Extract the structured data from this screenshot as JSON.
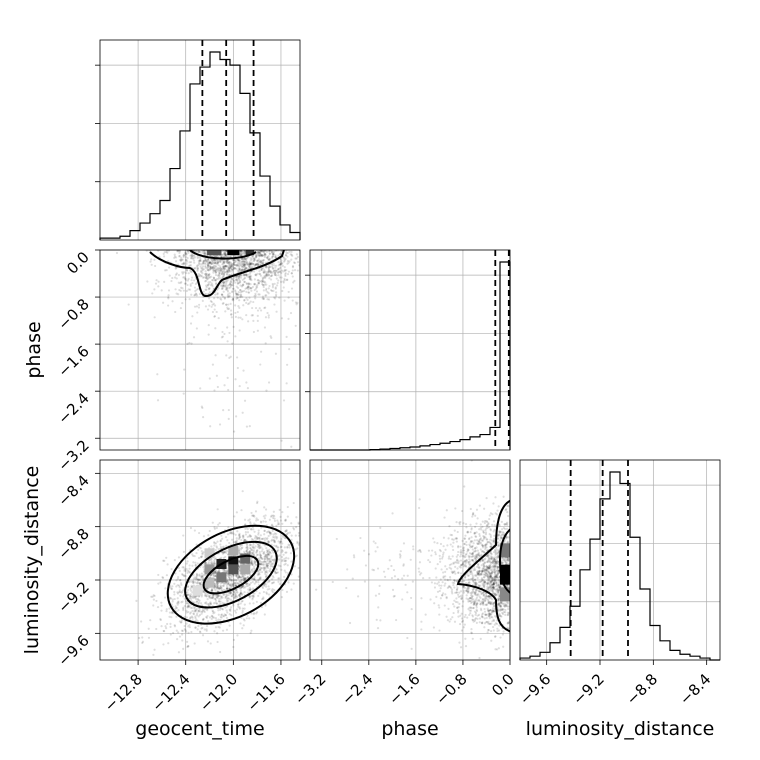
{
  "chart_data": {
    "type": "corner",
    "parameters": [
      "geocent_time",
      "phase",
      "luminosity_distance"
    ],
    "ranges": {
      "geocent_time": [
        -13.12,
        -11.44
      ],
      "phase": [
        -3.4,
        0.0
      ],
      "luminosity_distance": [
        -9.8,
        -8.3
      ]
    },
    "ticks": {
      "geocent_time": [
        -12.8,
        -12.4,
        -12.0,
        -11.6
      ],
      "phase": [
        -3.2,
        -2.4,
        -1.6,
        -0.8,
        0.0
      ],
      "luminosity_distance": [
        -9.6,
        -9.2,
        -8.8,
        -8.4
      ]
    },
    "tick_labels": {
      "geocent_time": [
        "−12.8",
        "−12.4",
        "−12.0",
        "−11.6"
      ],
      "phase": [
        "−3.2",
        "−2.4",
        "−1.6",
        "−0.8",
        "0.0"
      ],
      "luminosity_distance": [
        "−9.6",
        "−9.2",
        "−8.8",
        "−8.4"
      ]
    },
    "histograms": {
      "geocent_time": {
        "edges_start": -13.12,
        "bin_width": 0.084,
        "counts": [
          0.01,
          0.01,
          0.02,
          0.05,
          0.09,
          0.14,
          0.21,
          0.38,
          0.58,
          0.83,
          0.92,
          1.0,
          0.96,
          0.93,
          0.78,
          0.57,
          0.34,
          0.18,
          0.08,
          0.04,
          0.01
        ]
      },
      "phase": {
        "edges_start": -3.4,
        "bin_width": 0.17,
        "counts": [
          0.0,
          0.0,
          0.0,
          0.0,
          0.0,
          0.0,
          0.002,
          0.005,
          0.008,
          0.012,
          0.016,
          0.022,
          0.029,
          0.036,
          0.045,
          0.055,
          0.07,
          0.082,
          0.12,
          1.0
        ]
      },
      "luminosity_distance": {
        "edges_start": -9.8,
        "bin_width": 0.075,
        "counts": [
          0.01,
          0.02,
          0.04,
          0.09,
          0.17,
          0.28,
          0.47,
          0.63,
          0.84,
          0.98,
          0.92,
          0.64,
          0.37,
          0.18,
          0.1,
          0.05,
          0.03,
          0.02,
          0.01,
          0.0
        ]
      }
    },
    "quantiles": {
      "geocent_time": [
        -12.26,
        -12.06,
        -11.83
      ],
      "phase": [
        -0.25,
        -0.02,
        0.0
      ],
      "luminosity_distance": [
        -9.42,
        -9.18,
        -8.99
      ]
    },
    "samples_2d": {
      "phase_vs_geocent_time": {
        "mean": [
          -12.0,
          -0.35
        ],
        "sd": [
          0.26,
          0.45
        ]
      },
      "luminosity_distance_vs_geocent_time": {
        "mean": [
          -12.02,
          -9.16
        ],
        "sd": [
          0.27,
          0.2
        ],
        "corr": 0.58
      },
      "luminosity_distance_vs_phase": {
        "mean": [
          -0.35,
          -9.16
        ],
        "sd": [
          0.45,
          0.2
        ]
      }
    }
  },
  "axis_labels": {
    "geocent_time": "geocent_time",
    "phase": "phase",
    "luminosity_distance": "luminosity_distance"
  }
}
